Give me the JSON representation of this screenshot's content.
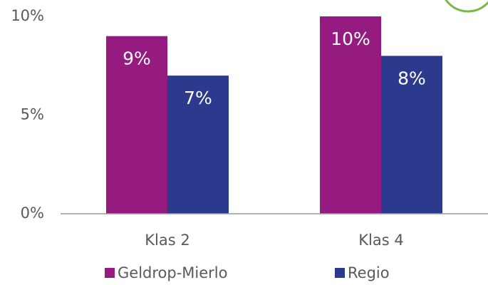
{
  "chart_data": {
    "type": "bar",
    "categories": [
      "Klas 2",
      "Klas 4"
    ],
    "series": [
      {
        "name": "Geldrop-Mierlo",
        "color": "#951b81",
        "values": [
          9,
          10
        ],
        "value_labels": [
          "9%",
          "10%"
        ]
      },
      {
        "name": "Regio",
        "color": "#2b3a8c",
        "values": [
          7,
          8
        ],
        "value_labels": [
          "7%",
          "8%"
        ]
      }
    ],
    "ylim": [
      0,
      10
    ],
    "yticks": [
      {
        "value": 0,
        "label": "0%"
      },
      {
        "value": 5,
        "label": "5%"
      },
      {
        "value": 10,
        "label": "10%"
      }
    ],
    "legend": "bottom"
  }
}
